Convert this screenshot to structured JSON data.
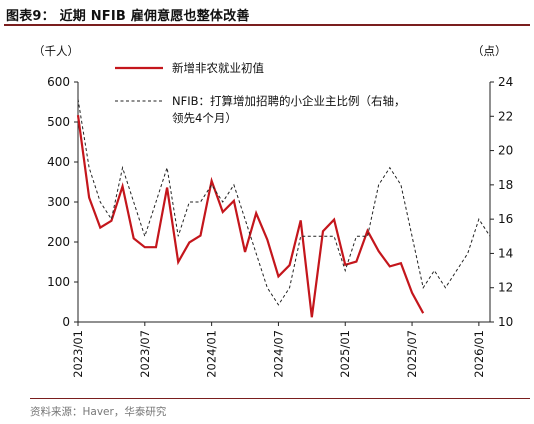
{
  "figure": {
    "title": "图表9：  近期 NFIB 雇佣意愿也整体改善",
    "source": "资料来源：Haver，华泰研究"
  },
  "colors": {
    "red_series": "#c4161c",
    "dashed_series": "#222222",
    "title_rule": "#7a1e1e"
  },
  "chart_data": {
    "type": "line",
    "left_unit": "（千人）",
    "right_unit": "（点）",
    "x_tick_labels": [
      "2023/01",
      "2023/07",
      "2024/01",
      "2024/07",
      "2025/01",
      "2025/07",
      "2026/01"
    ],
    "y_left_ticks": [
      0,
      100,
      200,
      300,
      400,
      500,
      600
    ],
    "y_right_ticks": [
      10,
      12,
      14,
      16,
      18,
      20,
      22,
      24
    ],
    "ylim_left": [
      0,
      600
    ],
    "ylim_right": [
      10,
      24
    ],
    "xlim": [
      "2023-01",
      "2026-02"
    ],
    "grid": false,
    "legend_position": "top",
    "series": [
      {
        "name": "新增非农就业初值",
        "axis": "left",
        "style": "solid",
        "x": [
          "2023-01",
          "2023-02",
          "2023-03",
          "2023-04",
          "2023-05",
          "2023-06",
          "2023-07",
          "2023-08",
          "2023-09",
          "2023-10",
          "2023-11",
          "2023-12",
          "2024-01",
          "2024-02",
          "2024-03",
          "2024-04",
          "2024-05",
          "2024-06",
          "2024-07",
          "2024-08",
          "2024-09",
          "2024-10",
          "2024-11",
          "2024-12",
          "2025-01",
          "2025-02",
          "2025-03",
          "2025-04",
          "2025-05",
          "2025-06",
          "2025-07",
          "2025-08"
        ],
        "values": [
          517,
          311,
          236,
          253,
          339,
          209,
          187,
          187,
          336,
          150,
          199,
          216,
          353,
          275,
          303,
          175,
          272,
          206,
          114,
          142,
          254,
          12,
          227,
          256,
          143,
          151,
          228,
          177,
          139,
          147,
          73,
          22
        ]
      },
      {
        "name": "NFIB：打算增加招聘的小企业主比例（右轴，领先4个月）",
        "axis": "right",
        "style": "dashed",
        "x": [
          "2023-01",
          "2023-02",
          "2023-03",
          "2023-04",
          "2023-05",
          "2023-06",
          "2023-07",
          "2023-08",
          "2023-09",
          "2023-10",
          "2023-11",
          "2023-12",
          "2024-01",
          "2024-02",
          "2024-03",
          "2024-04",
          "2024-05",
          "2024-06",
          "2024-07",
          "2024-08",
          "2024-09",
          "2024-10",
          "2024-11",
          "2024-12",
          "2025-01",
          "2025-02",
          "2025-03",
          "2025-04",
          "2025-05",
          "2025-06",
          "2025-07",
          "2025-08",
          "2025-09",
          "2025-10",
          "2025-11",
          "2025-12",
          "2026-01",
          "2026-02"
        ],
        "values": [
          23,
          19,
          17,
          16,
          19,
          17,
          15,
          17,
          19,
          15,
          17,
          17,
          18,
          17,
          18,
          16,
          14,
          12,
          11,
          12,
          15,
          15,
          15,
          15,
          13,
          15,
          15,
          18,
          19,
          18,
          15,
          12,
          13,
          12,
          13,
          14,
          16,
          15
        ]
      }
    ]
  }
}
